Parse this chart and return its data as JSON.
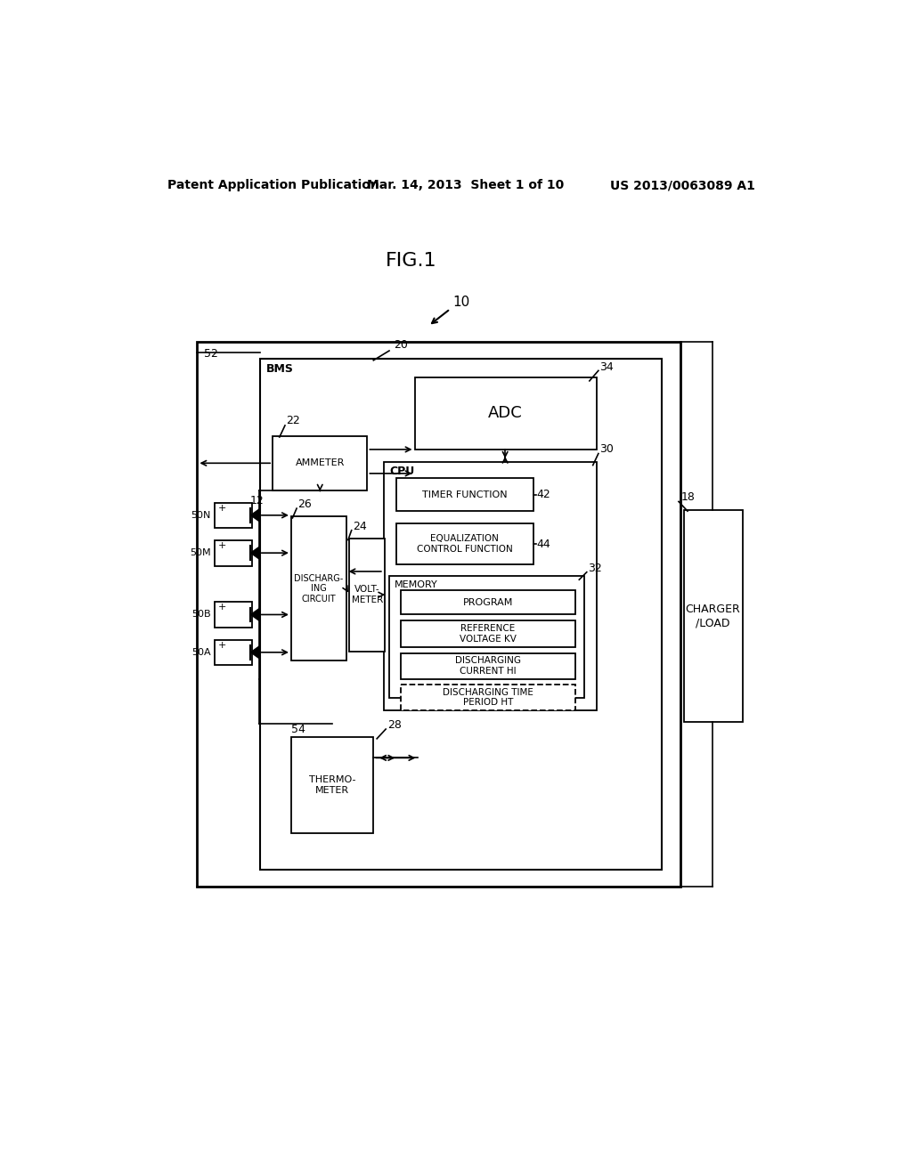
{
  "bg_color": "#ffffff",
  "title_header": "FIG.1",
  "patent_left": "Patent Application Publication",
  "patent_mid": "Mar. 14, 2013  Sheet 1 of 10",
  "patent_right": "US 2013/0063089 A1",
  "label_10": "10",
  "label_52": "52",
  "label_20": "20",
  "label_18": "18",
  "label_12": "12",
  "label_22": "22",
  "label_34": "34",
  "label_30": "30",
  "label_32": "32",
  "label_26": "26",
  "label_24": "24",
  "label_28": "28",
  "label_42": "42",
  "label_44": "44",
  "label_54": "54",
  "label_50N": "50N",
  "label_50M": "50M",
  "label_50B": "50B",
  "label_50A": "50A",
  "box_ammeter": "AMMETER",
  "box_adc": "ADC",
  "box_cpu_label": "CPU",
  "box_timer": "TIMER FUNCTION",
  "box_equal": "EQUALIZATION\nCONTROL FUNCTION",
  "box_memory_label": "MEMORY",
  "box_program": "PROGRAM",
  "box_refvolt": "REFERENCE\nVOLTAGE KV",
  "box_dischcurrent": "DISCHARGING\nCURRENT HI",
  "box_dischtime": "DISCHARGING TIME\nPERIOD HT",
  "box_voltmeter": "VOLT-\nMETER",
  "box_dischcircuit": "DISCHARG-\nING\nCIRCUIT",
  "box_thermo": "THERMO-\nMETER",
  "box_bms": "BMS",
  "box_charger": "CHARGER\n/LOAD"
}
